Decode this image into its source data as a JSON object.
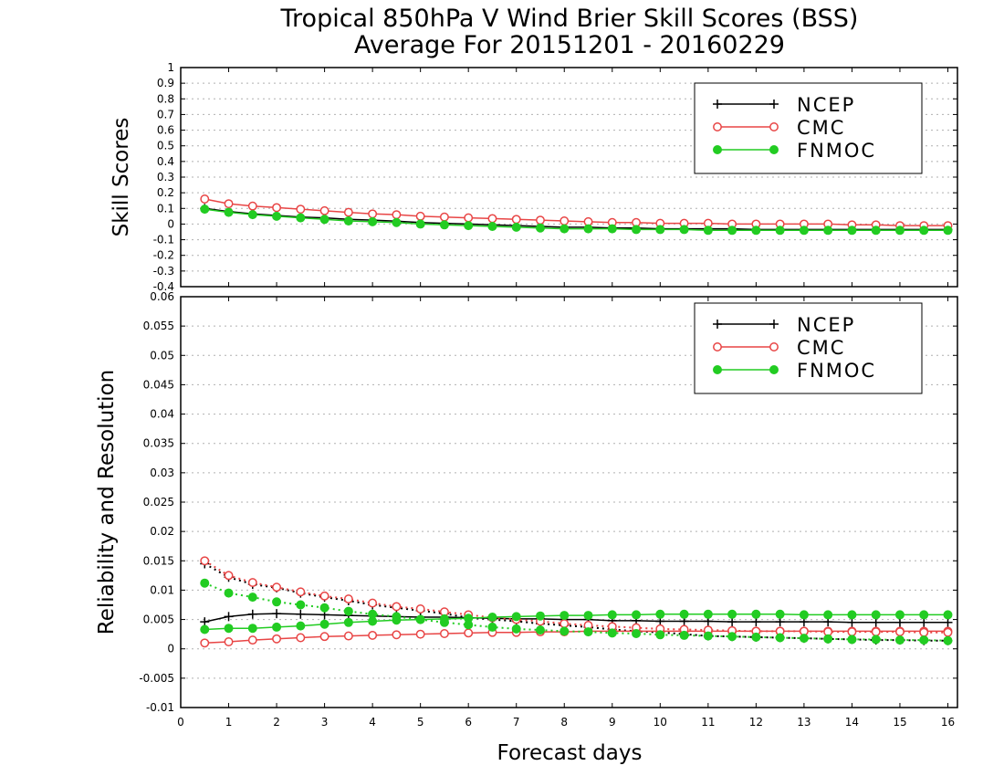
{
  "colors": {
    "ncep": "#000000",
    "cmc": "#e84545",
    "fnmoc": "#22cc22"
  },
  "chart_data": {
    "title_line1": "Tropical 850hPa V Wind Brier Skill Scores (BSS)",
    "title_line2": "Average For 20151201 - 20160229",
    "xlabel": "Forecast days",
    "x_ticks": [
      "0",
      "1",
      "2",
      "3",
      "4",
      "5",
      "6",
      "7",
      "8",
      "9",
      "10",
      "11",
      "12",
      "13",
      "14",
      "15",
      "16"
    ],
    "xlim": [
      0,
      16.2
    ],
    "x": [
      0.5,
      1,
      1.5,
      2,
      2.5,
      3,
      3.5,
      4,
      4.5,
      5,
      5.5,
      6,
      6.5,
      7,
      7.5,
      8,
      8.5,
      9,
      9.5,
      10,
      10.5,
      11,
      11.5,
      12,
      12.5,
      13,
      13.5,
      14,
      14.5,
      15,
      15.5,
      16
    ],
    "panels": [
      {
        "type": "line",
        "ylabel": "Skill Scores",
        "ylim": [
          -0.4,
          1
        ],
        "y_ticks": [
          "-0.4",
          "-0.3",
          "-0.2",
          "-0.1",
          "0",
          "0.1",
          "0.2",
          "0.3",
          "0.4",
          "0.5",
          "0.6",
          "0.7",
          "0.8",
          "0.9",
          "1"
        ],
        "grid": true,
        "legend_placement": "top-right",
        "series": [
          {
            "name": "NCEP",
            "key": "ncep",
            "marker": "plus",
            "line": "solid",
            "values": [
              0.1,
              0.08,
              0.065,
              0.055,
              0.045,
              0.04,
              0.03,
              0.025,
              0.018,
              0.01,
              0.005,
              0.0,
              -0.005,
              -0.01,
              -0.015,
              -0.02,
              -0.02,
              -0.025,
              -0.025,
              -0.03,
              -0.03,
              -0.03,
              -0.03,
              -0.035,
              -0.035,
              -0.035,
              -0.035,
              -0.035,
              -0.035,
              -0.035,
              -0.035,
              -0.035
            ]
          },
          {
            "name": "CMC",
            "key": "cmc",
            "marker": "circle-open",
            "line": "solid",
            "values": [
              0.16,
              0.13,
              0.115,
              0.105,
              0.095,
              0.085,
              0.075,
              0.065,
              0.06,
              0.05,
              0.045,
              0.04,
              0.035,
              0.03,
              0.025,
              0.02,
              0.015,
              0.01,
              0.01,
              0.005,
              0.005,
              0.005,
              0.0,
              0.0,
              0.0,
              0.0,
              0.0,
              -0.005,
              -0.005,
              -0.01,
              -0.01,
              -0.01
            ]
          },
          {
            "name": "FNMOC",
            "key": "fnmoc",
            "marker": "circle-filled",
            "line": "solid",
            "values": [
              0.095,
              0.075,
              0.06,
              0.05,
              0.04,
              0.03,
              0.02,
              0.015,
              0.01,
              0.0,
              -0.005,
              -0.01,
              -0.015,
              -0.02,
              -0.025,
              -0.03,
              -0.03,
              -0.03,
              -0.035,
              -0.035,
              -0.035,
              -0.04,
              -0.04,
              -0.04,
              -0.04,
              -0.04,
              -0.04,
              -0.04,
              -0.04,
              -0.04,
              -0.04,
              -0.04
            ]
          }
        ]
      },
      {
        "type": "line",
        "ylabel": "Reliability and Resolution",
        "ylim": [
          -0.01,
          0.06
        ],
        "y_ticks": [
          "-0.01",
          "-0.005",
          "0",
          "0.005",
          "0.01",
          "0.015",
          "0.02",
          "0.025",
          "0.03",
          "0.035",
          "0.04",
          "0.045",
          "0.05",
          "0.055",
          "0.06"
        ],
        "grid": true,
        "legend_placement": "top-right",
        "series": [
          {
            "name": "NCEP",
            "key": "ncep",
            "marker": "plus",
            "line": "solid",
            "values": [
              0.0046,
              0.0055,
              0.0059,
              0.006,
              0.0059,
              0.0058,
              0.0057,
              0.0056,
              0.0055,
              0.0054,
              0.0054,
              0.0053,
              0.0052,
              0.0051,
              0.0051,
              0.005,
              0.005,
              0.0048,
              0.0048,
              0.0047,
              0.0047,
              0.0047,
              0.0046,
              0.0046,
              0.0046,
              0.0046,
              0.0046,
              0.0045,
              0.0045,
              0.0045,
              0.0045,
              0.0045
            ]
          },
          {
            "line": "dotted",
            "key": "ncep",
            "marker": "plus",
            "values": [
              0.0145,
              0.0122,
              0.011,
              0.0104,
              0.0095,
              0.0088,
              0.0082,
              0.0075,
              0.007,
              0.0065,
              0.006,
              0.0053,
              0.005,
              0.0047,
              0.0043,
              0.004,
              0.0037,
              0.0033,
              0.003,
              0.0028,
              0.0025,
              0.0022,
              0.0021,
              0.002,
              0.0019,
              0.0018,
              0.0017,
              0.0016,
              0.0015,
              0.0015,
              0.0014,
              0.0014
            ]
          },
          {
            "name": "CMC",
            "key": "cmc",
            "marker": "circle-open",
            "line": "solid",
            "values": [
              0.001,
              0.0012,
              0.0015,
              0.0017,
              0.0019,
              0.0021,
              0.0022,
              0.0023,
              0.0024,
              0.0025,
              0.0026,
              0.0027,
              0.0028,
              0.0028,
              0.0029,
              0.0029,
              0.003,
              0.003,
              0.003,
              0.003,
              0.003,
              0.003,
              0.003,
              0.003,
              0.003,
              0.003,
              0.003,
              0.003,
              0.003,
              0.003,
              0.003,
              0.003
            ]
          },
          {
            "line": "dotted",
            "key": "cmc",
            "marker": "circle-open",
            "values": [
              0.015,
              0.0125,
              0.0113,
              0.0105,
              0.0097,
              0.009,
              0.0085,
              0.0078,
              0.0072,
              0.0068,
              0.0063,
              0.0058,
              0.0053,
              0.005,
              0.0047,
              0.0043,
              0.004,
              0.0038,
              0.0036,
              0.0034,
              0.0033,
              0.0032,
              0.0031,
              0.003,
              0.003,
              0.003,
              0.0029,
              0.0029,
              0.0029,
              0.0029,
              0.0028,
              0.0028
            ]
          },
          {
            "name": "FNMOC",
            "key": "fnmoc",
            "marker": "circle-filled",
            "line": "solid",
            "values": [
              0.0033,
              0.0035,
              0.0035,
              0.0037,
              0.0039,
              0.0042,
              0.0045,
              0.0047,
              0.0049,
              0.005,
              0.0051,
              0.0052,
              0.0054,
              0.0055,
              0.0056,
              0.0057,
              0.0057,
              0.0058,
              0.0058,
              0.0059,
              0.0059,
              0.0059,
              0.0059,
              0.0059,
              0.0059,
              0.0058,
              0.0058,
              0.0058,
              0.0058,
              0.0058,
              0.0058,
              0.0058
            ]
          },
          {
            "line": "dotted",
            "key": "fnmoc",
            "marker": "circle-filled",
            "values": [
              0.0112,
              0.0095,
              0.0088,
              0.008,
              0.0075,
              0.007,
              0.0064,
              0.0059,
              0.0055,
              0.005,
              0.0045,
              0.0041,
              0.0037,
              0.0034,
              0.0032,
              0.003,
              0.0029,
              0.0027,
              0.0026,
              0.0024,
              0.0023,
              0.0022,
              0.0021,
              0.002,
              0.0019,
              0.0018,
              0.0017,
              0.0016,
              0.0016,
              0.0015,
              0.0015,
              0.0014
            ]
          }
        ]
      }
    ]
  }
}
